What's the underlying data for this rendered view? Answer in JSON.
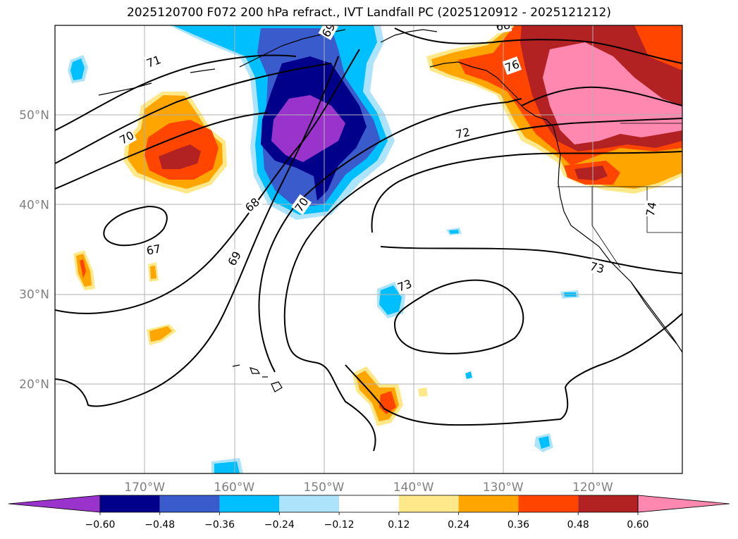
{
  "title": "2025120700 F072 200 hPa refract., IVT Landfall PC (2025120912 - 2025121212)",
  "map": {
    "lon_range": [
      -180,
      -110
    ],
    "lat_range": [
      10,
      60
    ],
    "lon_ticks": [
      {
        "value": -170,
        "label": "170°W"
      },
      {
        "value": -160,
        "label": "160°W"
      },
      {
        "value": -150,
        "label": "150°W"
      },
      {
        "value": -140,
        "label": "140°W"
      },
      {
        "value": -130,
        "label": "130°W"
      },
      {
        "value": -120,
        "label": "120°W"
      }
    ],
    "lat_ticks": [
      {
        "value": 20,
        "label": "20°N"
      },
      {
        "value": 30,
        "label": "30°N"
      },
      {
        "value": 40,
        "label": "40°N"
      },
      {
        "value": 50,
        "label": "50°N"
      }
    ],
    "grid": true,
    "contour_color": "#000000",
    "contour_labels": [
      {
        "text": "67",
        "lon": -169,
        "lat": 35,
        "rot": -10
      },
      {
        "text": "68",
        "lon": -158,
        "lat": 40,
        "rot": -40
      },
      {
        "text": "69",
        "lon": -160,
        "lat": 34,
        "rot": -60
      },
      {
        "text": "70",
        "lon": -172,
        "lat": 47.5,
        "rot": -28
      },
      {
        "text": "70",
        "lon": -152.5,
        "lat": 40,
        "rot": -55
      },
      {
        "text": "71",
        "lon": -169,
        "lat": 56,
        "rot": -20
      },
      {
        "text": "72",
        "lon": -134.5,
        "lat": 48,
        "rot": -12
      },
      {
        "text": "73",
        "lon": -141,
        "lat": 31,
        "rot": -20
      },
      {
        "text": "73",
        "lon": -119.5,
        "lat": 33,
        "rot": 15
      },
      {
        "text": "74",
        "lon": -113.5,
        "lat": 39.5,
        "rot": -80
      },
      {
        "text": "68",
        "lon": -130,
        "lat": 60,
        "rot": -10
      },
      {
        "text": "76",
        "lon": -129,
        "lat": 55.5,
        "rot": -20
      },
      {
        "text": "69",
        "lon": -149.5,
        "lat": 59.5,
        "rot": -60
      }
    ],
    "fill_colors": {
      "neg_060": "#9933cc",
      "neg_048": "#00008b",
      "neg_036": "#3a5bcc",
      "neg_024": "#00bfff",
      "neg_012": "#ade4fb",
      "zero": "#ffffff",
      "pos_012": "#ffe88a",
      "pos_024": "#ffa500",
      "pos_036": "#ff4500",
      "pos_048": "#b22222",
      "pos_060": "#ff88b0"
    }
  },
  "colorbar": {
    "colors": [
      "#9933cc",
      "#00008b",
      "#3a5bcc",
      "#00bfff",
      "#ade4fb",
      "#ffffff",
      "#ffe88a",
      "#ffa500",
      "#ff4500",
      "#b22222",
      "#ff88b0"
    ],
    "tick_labels": [
      "−0.60",
      "−0.48",
      "−0.36",
      "−0.24",
      "−0.12",
      "0.12",
      "0.24",
      "0.36",
      "0.48",
      "0.60"
    ]
  }
}
